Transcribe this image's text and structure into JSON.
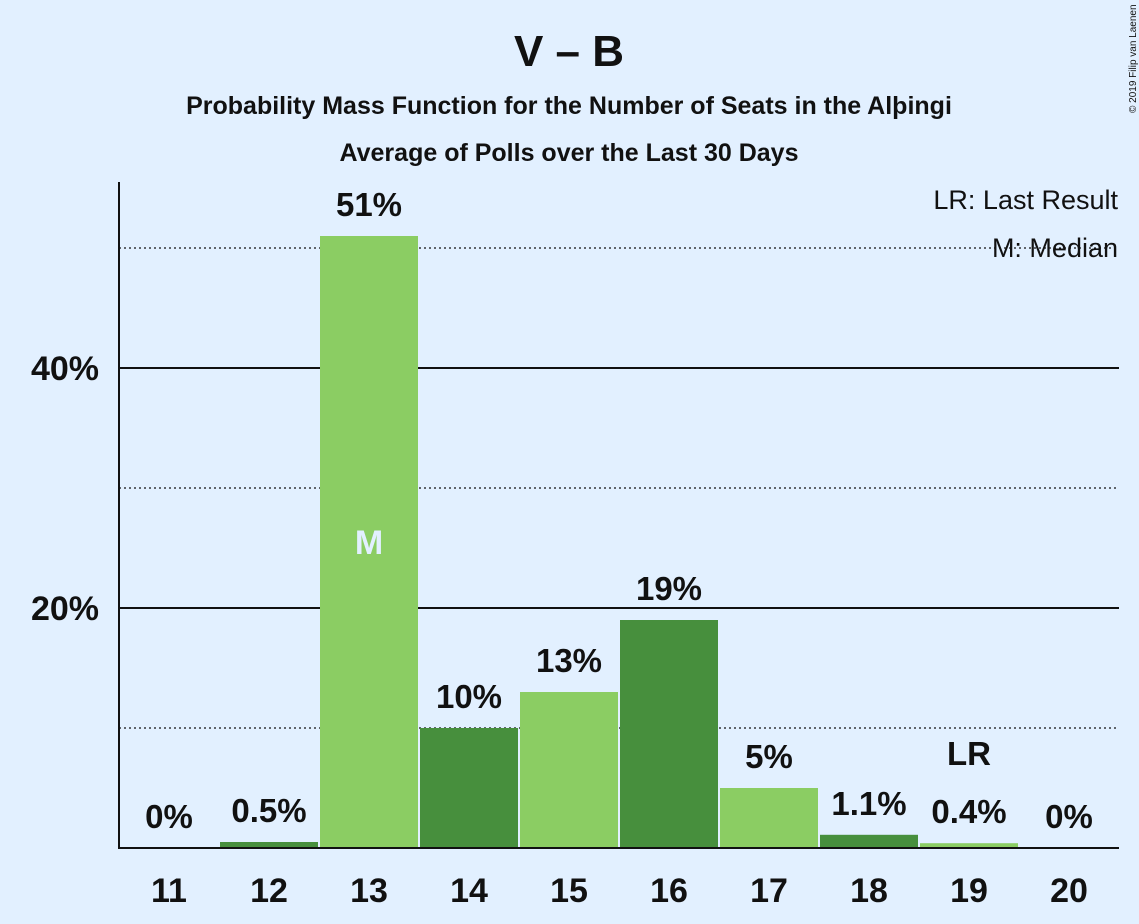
{
  "chart_data": {
    "type": "bar",
    "title": "V – B",
    "subtitle_1": "Probability Mass Function for the Number of Seats in the Alþingi",
    "subtitle_2": "Average of Polls over the Last 30 Days",
    "categories": [
      "11",
      "12",
      "13",
      "14",
      "15",
      "16",
      "17",
      "18",
      "19",
      "20"
    ],
    "values": [
      0,
      0.5,
      51,
      10,
      13,
      19,
      5,
      1.1,
      0.4,
      0
    ],
    "value_labels": [
      "0%",
      "0.5%",
      "51%",
      "10%",
      "13%",
      "19%",
      "5%",
      "1.1%",
      "0.4%",
      "0%"
    ],
    "bar_colors": [
      "#8bcd63",
      "#478f3d",
      "#8bcd63",
      "#478f3d",
      "#8bcd63",
      "#478f3d",
      "#8bcd63",
      "#478f3d",
      "#8bcd63",
      "#478f3d"
    ],
    "ylim": [
      0,
      55.5
    ],
    "yticks": [
      20,
      40
    ],
    "ytick_labels": [
      "20%",
      "40%"
    ],
    "minor_gridlines": [
      10,
      30,
      50
    ],
    "median_category": "13",
    "median_marker": "M",
    "last_result_category": "19",
    "last_result_marker": "LR",
    "legend": {
      "placement": "top-right",
      "last_result": "LR: Last Result",
      "median": "M: Median"
    },
    "copyright": "© 2019 Filip van Laenen",
    "colors": {
      "background": "#e2f0ff",
      "bar_light": "#8bcd63",
      "bar_dark": "#478f3d",
      "text": "#111111"
    }
  }
}
